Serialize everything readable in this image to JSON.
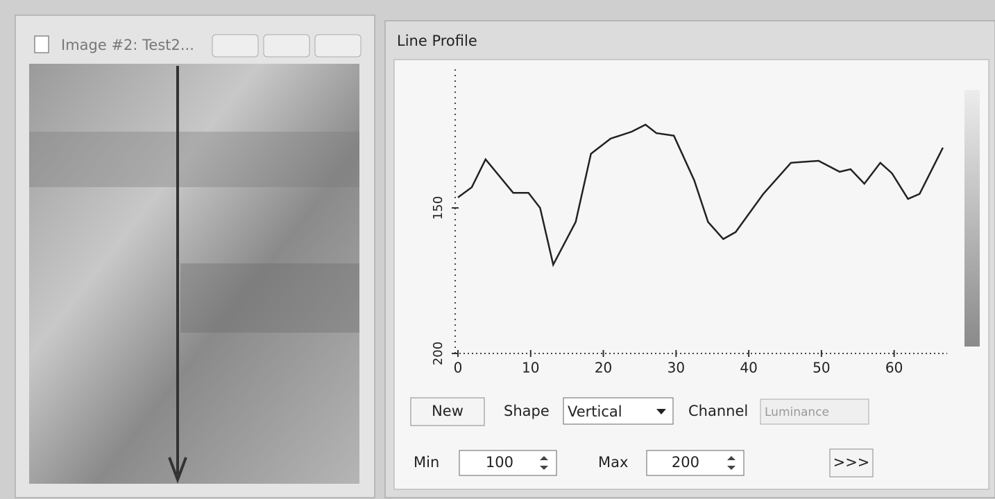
{
  "image_window": {
    "title": "Image #2: Test2..."
  },
  "profile_window": {
    "title": "Line Profile",
    "chart_data": {
      "type": "line",
      "x": [
        0,
        1.9,
        3.8,
        7.6,
        9.7,
        11.3,
        13.1,
        16.2,
        18.3,
        21,
        23.9,
        25.8,
        27.3,
        29.7,
        32.5,
        34.4,
        36.5,
        38.2,
        42,
        45.8,
        49.6,
        52.5,
        54,
        55.9,
        58.1,
        59.7,
        61.9,
        63.5,
        66.7
      ],
      "values": [
        146.4,
        142.9,
        133.3,
        144.8,
        144.8,
        150,
        169.5,
        154.8,
        131.4,
        126.2,
        123.8,
        121.4,
        124.3,
        125.2,
        140.5,
        154.8,
        160.7,
        158.3,
        145.2,
        134.5,
        133.8,
        137.6,
        136.7,
        141.7,
        134.5,
        138.1,
        146.9,
        145.2,
        129.3
      ],
      "color": "#222222",
      "xlim": [
        0,
        67
      ],
      "ylim": [
        200,
        100
      ],
      "xticks": [
        0,
        10,
        20,
        30,
        40,
        50,
        60
      ],
      "yticks": [
        150,
        200
      ],
      "grid": false
    },
    "controls": {
      "new_button": "New",
      "shape_label": "Shape",
      "shape_value": "Vertical",
      "channel_label": "Channel",
      "channel_value": "Luminance",
      "min_label": "Min",
      "min_value": 100,
      "max_label": "Max",
      "max_value": 200,
      "more_button": ">>>"
    }
  }
}
